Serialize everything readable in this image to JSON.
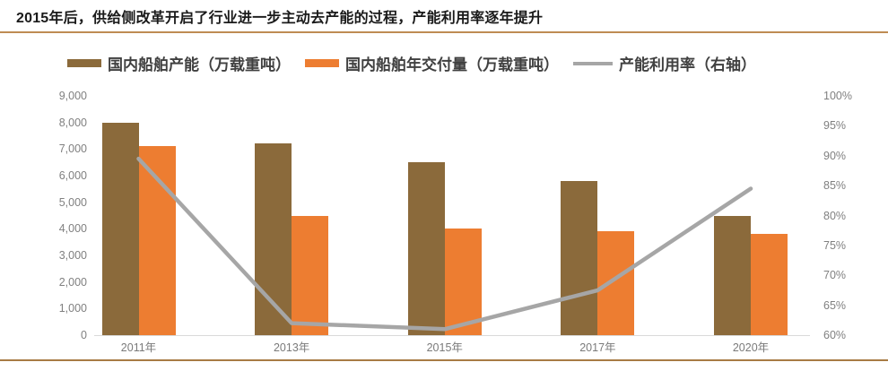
{
  "page": {
    "title": "2015年后，供给侧改革开启了行业进一步主动去产能的过程，产能利用率逐年提升"
  },
  "colors": {
    "capacity_bar": "#8b6a3b",
    "delivery_bar": "#ed7d31",
    "utilization_line": "#a6a6a6",
    "axis_line": "#d9d9d9",
    "axis_text": "#808080",
    "legend_text": "#404040",
    "title_text": "#1a1a1a",
    "top_rule": "#be8c53",
    "bottom_rule": "#a87b44"
  },
  "legend": {
    "items": [
      {
        "label": "国内船舶产能（万载重吨）",
        "type": "bar",
        "color": "#8b6a3b"
      },
      {
        "label": "国内船舶年交付量（万载重吨）",
        "type": "bar",
        "color": "#ed7d31"
      },
      {
        "label": "产能利用率（右轴）",
        "type": "line",
        "color": "#a6a6a6"
      }
    ]
  },
  "chart_data": {
    "type": "bar",
    "subtype": "bar-line-combo",
    "title": "2015年后，供给侧改革开启了行业进一步主动去产能的过程，产能利用率逐年提升",
    "categories": [
      "2011年",
      "2013年",
      "2015年",
      "2017年",
      "2020年"
    ],
    "series": [
      {
        "name": "国内船舶产能（万载重吨）",
        "type": "bar",
        "axis": "left",
        "color": "#8b6a3b",
        "values": [
          8000,
          7200,
          6500,
          5800,
          4500
        ]
      },
      {
        "name": "国内船舶年交付量（万载重吨）",
        "type": "bar",
        "axis": "left",
        "color": "#ed7d31",
        "values": [
          7100,
          4500,
          4000,
          3900,
          3800
        ]
      },
      {
        "name": "产能利用率（右轴）",
        "type": "line",
        "axis": "right",
        "color": "#a6a6a6",
        "values": [
          89.5,
          62,
          61,
          67.5,
          84.5
        ]
      }
    ],
    "left_axis": {
      "min": 0,
      "max": 9000,
      "step": 1000,
      "tick_labels": [
        "9,000",
        "8,000",
        "7,000",
        "6,000",
        "5,000",
        "4,000",
        "3,000",
        "2,000",
        "1,000",
        "0"
      ]
    },
    "right_axis": {
      "min": 60,
      "max": 100,
      "step": 5,
      "tick_labels": [
        "100%",
        "95%",
        "90%",
        "85%",
        "80%",
        "75%",
        "70%",
        "65%",
        "60%"
      ]
    },
    "grid": false,
    "legend_position": "top",
    "xlabel": "",
    "ylabel": ""
  }
}
